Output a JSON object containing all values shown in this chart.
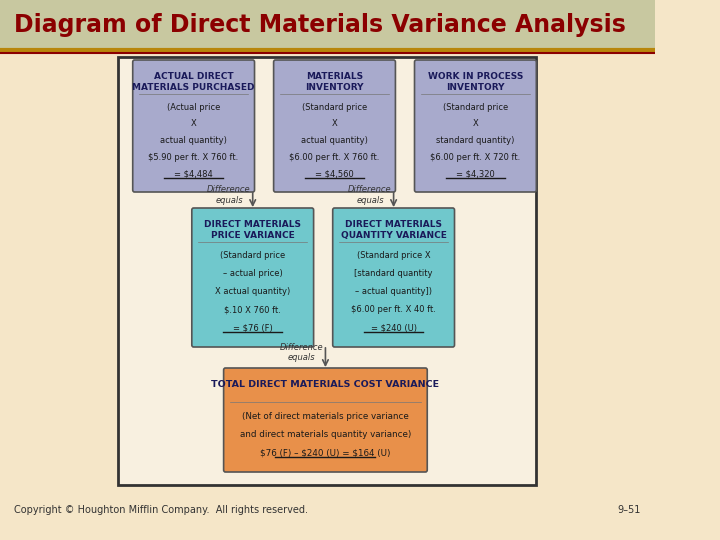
{
  "title": "Diagram of Direct Materials Variance Analysis",
  "title_color": "#8B0000",
  "title_bg": "#C8C8A0",
  "outer_bg": "#F5E6C8",
  "inner_bg": "#FFFFFF",
  "border_color": "#333333",
  "header_line_color": "#C8A020",
  "copyright": "Copyright © Houghton Mifflin Company.  All rights reserved.",
  "page_num": "9–51",
  "box1_title": "ACTUAL DIRECT\nMATERIALS PURCHASED",
  "box1_line1": "(Actual price",
  "box1_line2": "X",
  "box1_line3": "actual quantity)",
  "box1_line4": "$5.90 per ft. X 760 ft.",
  "box1_line5": "= $4,484",
  "box1_bg": "#A8AACC",
  "box2_title": "MATERIALS\nINVENTORY",
  "box2_line1": "(Standard price",
  "box2_line2": "X",
  "box2_line3": "actual quantity)",
  "box2_line4": "$6.00 per ft. X 760 ft.",
  "box2_line5": "= $4,560",
  "box2_bg": "#A8AACC",
  "box3_title": "WORK IN PROCESS\nINVENTORY",
  "box3_line1": "(Standard price",
  "box3_line2": "X",
  "box3_line3": "standard quantity)",
  "box3_line4": "$6.00 per ft. X 720 ft.",
  "box3_line5": "= $4,320",
  "box3_bg": "#A8AACC",
  "box4_title": "DIRECT MATERIALS\nPRICE VARIANCE",
  "box4_line1": "(Standard price",
  "box4_line2": "– actual price)",
  "box4_line3": "X actual quantity)",
  "box4_line4": "$.10 X 760 ft.",
  "box4_line5": "= $76 (F)",
  "box4_bg": "#70C8CC",
  "box5_title": "DIRECT MATERIALS\nQUANTITY VARIANCE",
  "box5_line1": "(Standard price X",
  "box5_line2": "[standard quantity",
  "box5_line3": "– actual quantity])",
  "box5_line4": "$6.00 per ft. X 40 ft.",
  "box5_line5": "= $240 (U)",
  "box5_bg": "#70C8CC",
  "box6_title": "TOTAL DIRECT MATERIALS COST VARIANCE",
  "box6_line1": "(Net of direct materials price variance",
  "box6_line2": "and direct materials quantity variance)",
  "box6_line3": "$76 (F) – $240 (U) = $164 (U)",
  "box6_bg": "#E8904A",
  "diff_label": "Difference\nequals",
  "diff_label2": "Difference\nequals"
}
